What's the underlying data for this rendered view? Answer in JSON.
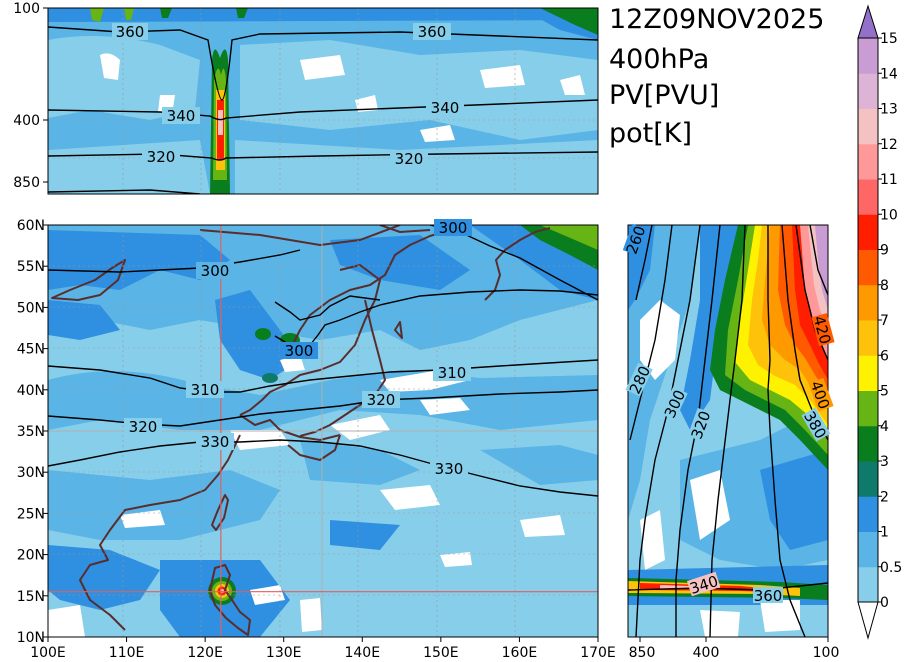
{
  "chart_data": [
    {
      "type": "heatmap",
      "panel": "top-cross-section",
      "y_axis_ticks": [
        "100",
        "400",
        "850"
      ],
      "contour_labels": [
        "360",
        "360",
        "340",
        "340",
        "320",
        "320"
      ]
    },
    {
      "type": "heatmap",
      "panel": "main-map",
      "x_range": [
        100,
        170
      ],
      "y_range": [
        10,
        60
      ],
      "x_ticks": [
        "100E",
        "110E",
        "120E",
        "130E",
        "140E",
        "150E",
        "160E",
        "170E"
      ],
      "y_ticks": [
        "10N",
        "15N",
        "20N",
        "25N",
        "30N",
        "35N",
        "40N",
        "45N",
        "50N",
        "55N",
        "60N"
      ],
      "crosshair": {
        "lon": 122,
        "lat": 15.5
      },
      "contour_labels": [
        "300",
        "300",
        "300",
        "310",
        "310",
        "320",
        "320",
        "330",
        "330"
      ]
    },
    {
      "type": "heatmap",
      "panel": "right-cross-section",
      "x_axis_ticks": [
        "850",
        "400",
        "100"
      ],
      "contour_labels": [
        "260",
        "280",
        "300",
        "320",
        "340",
        "360",
        "380",
        "400",
        "420"
      ]
    }
  ],
  "title": {
    "line1": "12Z09NOV2025",
    "line2": "400hPa",
    "line3": "PV[PVU]",
    "line4": "pot[K]"
  },
  "colorbar": {
    "levels": [
      "0",
      "0.5",
      "1",
      "2",
      "3",
      "4",
      "5",
      "6",
      "7",
      "8",
      "9",
      "10",
      "11",
      "12",
      "13",
      "14",
      "15"
    ],
    "colors": [
      "#87ceeb",
      "#5ab4e6",
      "#2f8fe0",
      "#0f7a6a",
      "#0a7d1e",
      "#66b514",
      "#fff200",
      "#ffc20a",
      "#ff9900",
      "#ff5a00",
      "#ff1e00",
      "#ff6666",
      "#ff9999",
      "#f4c2c2",
      "#ddb4d6",
      "#c99cd4",
      "#9370c9"
    ]
  }
}
